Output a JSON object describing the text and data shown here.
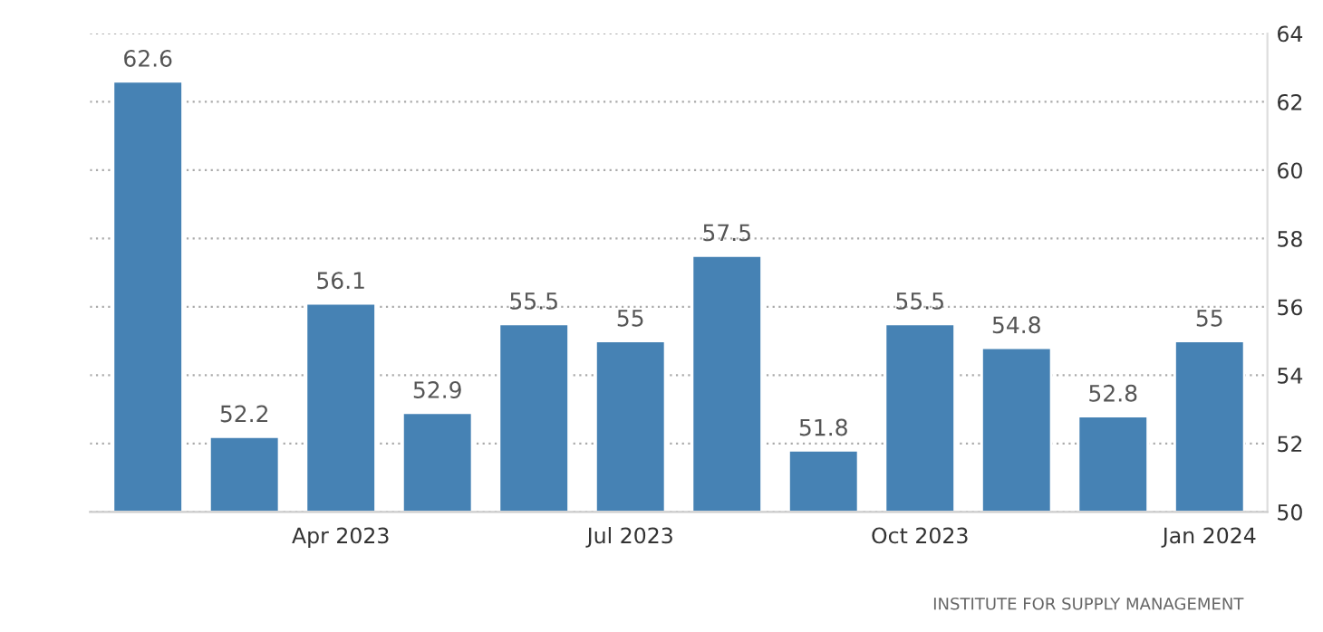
{
  "chart_data": {
    "type": "bar",
    "categories": [
      null,
      null,
      "Apr 2023",
      null,
      null,
      "Jul 2023",
      null,
      null,
      "Oct 2023",
      null,
      null,
      "Jan 2024"
    ],
    "values": [
      62.6,
      52.2,
      56.1,
      52.9,
      55.5,
      55,
      57.5,
      51.8,
      55.5,
      54.8,
      52.8,
      55
    ],
    "color": "#4682b4",
    "ylim": [
      50,
      64
    ],
    "yticks": [
      50,
      52,
      54,
      56,
      58,
      60,
      62,
      64
    ],
    "grid": "y",
    "data_labels": true,
    "annotations": [
      "INSTITUTE FOR SUPPLY MANAGEMENT"
    ]
  }
}
